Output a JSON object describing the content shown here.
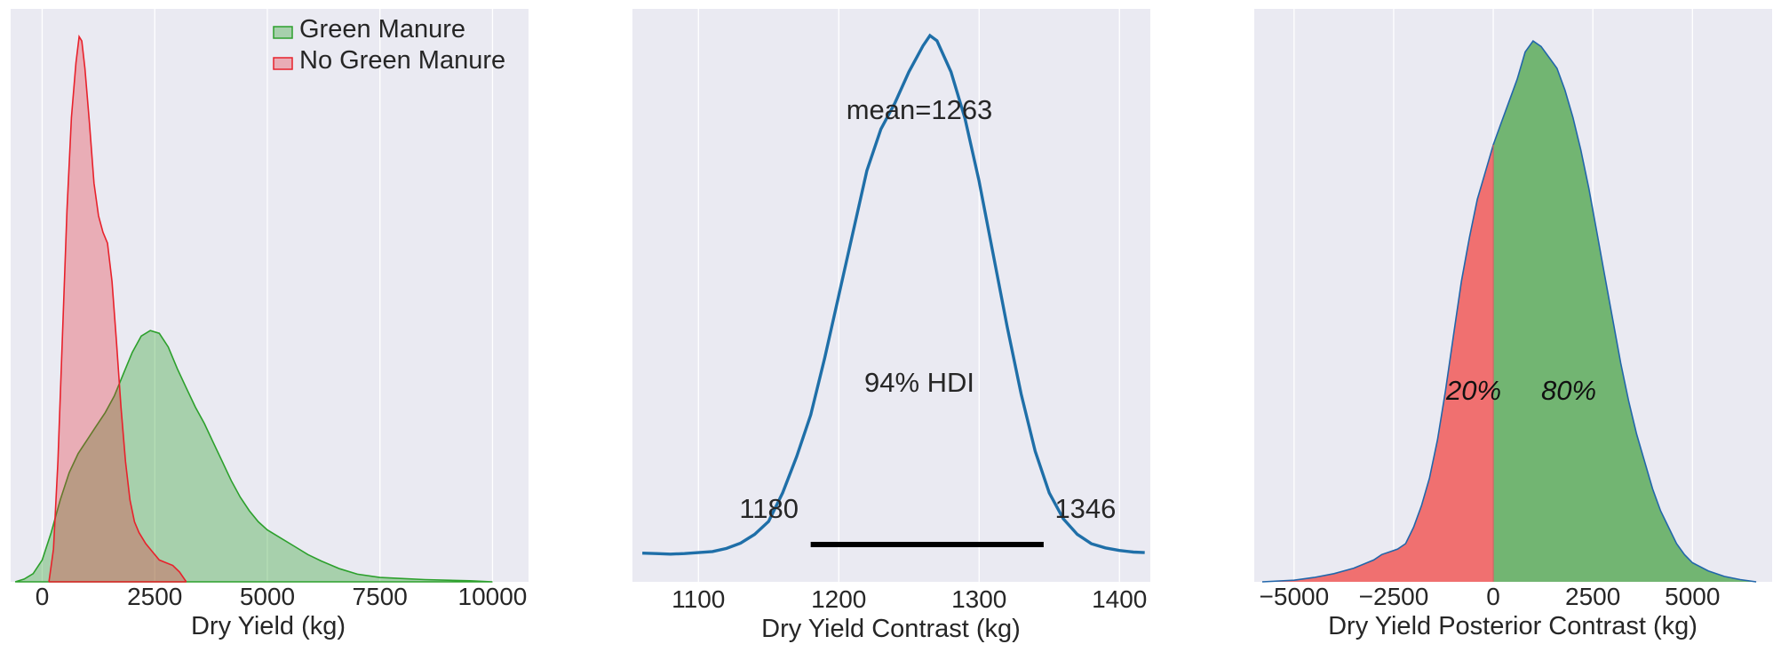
{
  "chart_data": [
    {
      "type": "area",
      "title": "",
      "xlabel": "Dry Yield (kg)",
      "ylabel": "",
      "xlim": [
        -700,
        10800
      ],
      "ylim": [
        0,
        1
      ],
      "grid": true,
      "legend_position": "top-right",
      "xticks": [
        {
          "value": 0,
          "label": "0"
        },
        {
          "value": 2500,
          "label": "2500"
        },
        {
          "value": 5000,
          "label": "5000"
        },
        {
          "value": 7500,
          "label": "7500"
        },
        {
          "value": 10000,
          "label": "10000"
        }
      ],
      "series": [
        {
          "name": "Green Manure",
          "color": "#2ca02c",
          "fill_alpha": 0.35,
          "points": [
            [
              -600,
              0.0
            ],
            [
              -400,
              0.005
            ],
            [
              -200,
              0.015
            ],
            [
              0,
              0.04
            ],
            [
              200,
              0.09
            ],
            [
              400,
              0.15
            ],
            [
              600,
              0.2
            ],
            [
              800,
              0.235
            ],
            [
              1000,
              0.26
            ],
            [
              1200,
              0.285
            ],
            [
              1400,
              0.31
            ],
            [
              1600,
              0.34
            ],
            [
              1800,
              0.38
            ],
            [
              2000,
              0.42
            ],
            [
              2200,
              0.45
            ],
            [
              2400,
              0.46
            ],
            [
              2600,
              0.455
            ],
            [
              2800,
              0.43
            ],
            [
              3000,
              0.39
            ],
            [
              3200,
              0.355
            ],
            [
              3400,
              0.32
            ],
            [
              3600,
              0.29
            ],
            [
              3800,
              0.255
            ],
            [
              4000,
              0.22
            ],
            [
              4200,
              0.185
            ],
            [
              4400,
              0.155
            ],
            [
              4600,
              0.13
            ],
            [
              4800,
              0.11
            ],
            [
              5000,
              0.095
            ],
            [
              5300,
              0.08
            ],
            [
              5600,
              0.065
            ],
            [
              5900,
              0.05
            ],
            [
              6200,
              0.038
            ],
            [
              6600,
              0.024
            ],
            [
              7000,
              0.014
            ],
            [
              7500,
              0.008
            ],
            [
              8000,
              0.006
            ],
            [
              8500,
              0.004
            ],
            [
              9000,
              0.003
            ],
            [
              9500,
              0.002
            ],
            [
              10000,
              0.0
            ]
          ]
        },
        {
          "name": "No Green Manure",
          "color": "#e8212b",
          "fill_alpha": 0.3,
          "points": [
            [
              150,
              0.0
            ],
            [
              250,
              0.06
            ],
            [
              350,
              0.22
            ],
            [
              450,
              0.45
            ],
            [
              550,
              0.68
            ],
            [
              650,
              0.85
            ],
            [
              750,
              0.95
            ],
            [
              820,
              0.998
            ],
            [
              880,
              0.99
            ],
            [
              950,
              0.94
            ],
            [
              1050,
              0.84
            ],
            [
              1150,
              0.73
            ],
            [
              1250,
              0.67
            ],
            [
              1350,
              0.64
            ],
            [
              1450,
              0.62
            ],
            [
              1550,
              0.55
            ],
            [
              1650,
              0.44
            ],
            [
              1750,
              0.32
            ],
            [
              1850,
              0.22
            ],
            [
              1950,
              0.15
            ],
            [
              2050,
              0.11
            ],
            [
              2150,
              0.09
            ],
            [
              2300,
              0.07
            ],
            [
              2450,
              0.055
            ],
            [
              2600,
              0.04
            ],
            [
              2750,
              0.035
            ],
            [
              2900,
              0.03
            ],
            [
              3050,
              0.018
            ],
            [
              3200,
              0.0
            ]
          ]
        }
      ]
    },
    {
      "type": "line",
      "title": "",
      "xlabel": "Dry Yield Contrast (kg)",
      "ylabel": "",
      "xlim": [
        1053,
        1422
      ],
      "ylim": [
        0,
        1
      ],
      "grid": true,
      "xticks": [
        {
          "value": 1100,
          "label": "1100"
        },
        {
          "value": 1200,
          "label": "1200"
        },
        {
          "value": 1300,
          "label": "1300"
        },
        {
          "value": 1400,
          "label": "1400"
        }
      ],
      "mean_label": "mean=1263",
      "hdi_label": "94% HDI",
      "hdi": [
        1180,
        1346
      ],
      "hdi_low_label": "1180",
      "hdi_high_label": "1346",
      "series": [
        {
          "color": "#1f6fa8",
          "points": [
            [
              1060,
              0.004
            ],
            [
              1070,
              0.003
            ],
            [
              1080,
              0.002
            ],
            [
              1090,
              0.003
            ],
            [
              1100,
              0.005
            ],
            [
              1110,
              0.007
            ],
            [
              1120,
              0.013
            ],
            [
              1130,
              0.023
            ],
            [
              1140,
              0.04
            ],
            [
              1150,
              0.065
            ],
            [
              1160,
              0.12
            ],
            [
              1170,
              0.19
            ],
            [
              1180,
              0.27
            ],
            [
              1190,
              0.38
            ],
            [
              1200,
              0.5
            ],
            [
              1210,
              0.62
            ],
            [
              1220,
              0.74
            ],
            [
              1230,
              0.82
            ],
            [
              1240,
              0.87
            ],
            [
              1250,
              0.93
            ],
            [
              1260,
              0.98
            ],
            [
              1265,
              1.0
            ],
            [
              1270,
              0.99
            ],
            [
              1280,
              0.93
            ],
            [
              1290,
              0.84
            ],
            [
              1300,
              0.72
            ],
            [
              1310,
              0.58
            ],
            [
              1320,
              0.44
            ],
            [
              1330,
              0.31
            ],
            [
              1340,
              0.2
            ],
            [
              1350,
              0.12
            ],
            [
              1360,
              0.07
            ],
            [
              1370,
              0.04
            ],
            [
              1380,
              0.022
            ],
            [
              1390,
              0.014
            ],
            [
              1400,
              0.009
            ],
            [
              1410,
              0.006
            ],
            [
              1418,
              0.005
            ]
          ]
        }
      ]
    },
    {
      "type": "area",
      "title": "",
      "xlabel": "Dry Yield Posterior Contrast (kg)",
      "ylabel": "",
      "xlim": [
        -6000,
        7000
      ],
      "ylim": [
        0,
        1
      ],
      "grid": true,
      "xticks": [
        {
          "value": -5000,
          "label": "−5000"
        },
        {
          "value": -2500,
          "label": "−2500"
        },
        {
          "value": 0,
          "label": "0"
        },
        {
          "value": 2500,
          "label": "2500"
        },
        {
          "value": 5000,
          "label": "5000"
        }
      ],
      "split_at": 0,
      "left_label": "20%",
      "right_label": "80%",
      "left_color": "#f07070",
      "right_color": "#72b572",
      "outline_color": "#2266aa",
      "points": [
        [
          -5800,
          0.0
        ],
        [
          -5000,
          0.003
        ],
        [
          -4500,
          0.008
        ],
        [
          -4000,
          0.015
        ],
        [
          -3500,
          0.025
        ],
        [
          -3000,
          0.04
        ],
        [
          -2800,
          0.05
        ],
        [
          -2600,
          0.055
        ],
        [
          -2400,
          0.06
        ],
        [
          -2200,
          0.07
        ],
        [
          -2000,
          0.1
        ],
        [
          -1800,
          0.14
        ],
        [
          -1600,
          0.19
        ],
        [
          -1400,
          0.26
        ],
        [
          -1200,
          0.35
        ],
        [
          -1000,
          0.45
        ],
        [
          -800,
          0.55
        ],
        [
          -600,
          0.63
        ],
        [
          -400,
          0.7
        ],
        [
          -200,
          0.75
        ],
        [
          0,
          0.8
        ],
        [
          200,
          0.84
        ],
        [
          400,
          0.88
        ],
        [
          600,
          0.92
        ],
        [
          800,
          0.97
        ],
        [
          1000,
          0.99
        ],
        [
          1200,
          0.98
        ],
        [
          1400,
          0.96
        ],
        [
          1600,
          0.94
        ],
        [
          1800,
          0.9
        ],
        [
          2000,
          0.85
        ],
        [
          2200,
          0.79
        ],
        [
          2400,
          0.72
        ],
        [
          2600,
          0.64
        ],
        [
          2800,
          0.56
        ],
        [
          3000,
          0.48
        ],
        [
          3200,
          0.4
        ],
        [
          3400,
          0.33
        ],
        [
          3600,
          0.27
        ],
        [
          3800,
          0.22
        ],
        [
          4000,
          0.17
        ],
        [
          4200,
          0.13
        ],
        [
          4400,
          0.1
        ],
        [
          4600,
          0.07
        ],
        [
          4800,
          0.05
        ],
        [
          5000,
          0.035
        ],
        [
          5400,
          0.02
        ],
        [
          5800,
          0.01
        ],
        [
          6200,
          0.004
        ],
        [
          6600,
          0.0
        ]
      ]
    }
  ]
}
